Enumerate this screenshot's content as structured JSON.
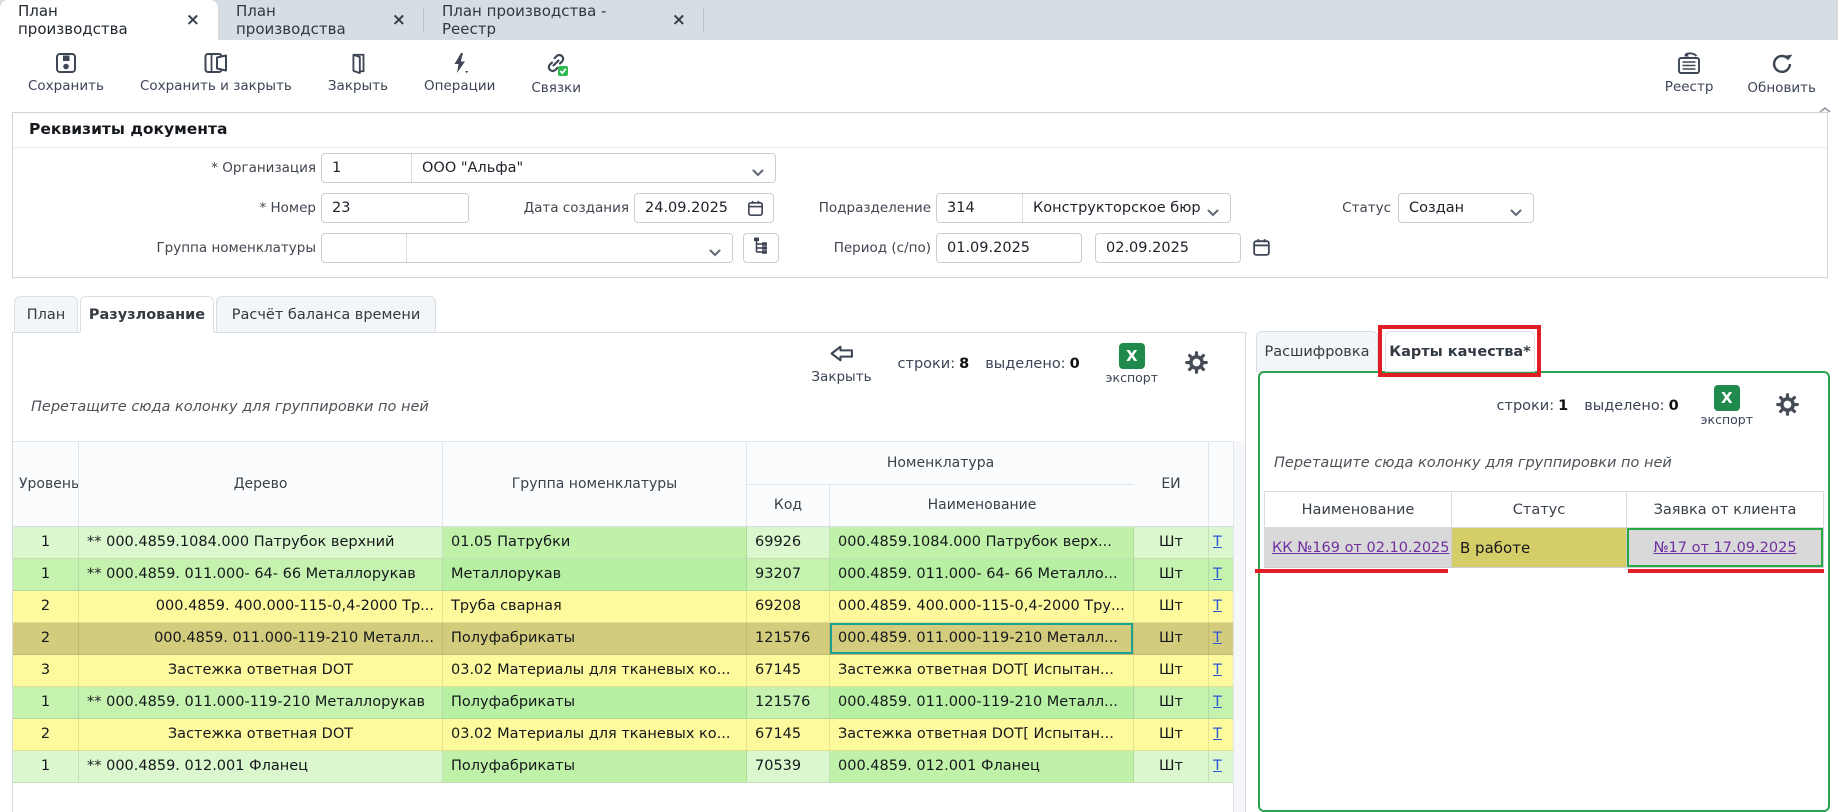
{
  "ui": {
    "close_glyph": "×",
    "excel_glyph": "X"
  },
  "window_tabs": [
    {
      "label": "План производства",
      "active": true
    },
    {
      "label": "План производства",
      "active": false
    },
    {
      "label": "План производства - Реестр",
      "active": false
    }
  ],
  "toolbar": {
    "save": "Сохранить",
    "save_close": "Сохранить и закрыть",
    "close": "Закрыть",
    "operations": "Операции",
    "links": "Связки",
    "registry": "Реестр",
    "refresh": "Обновить"
  },
  "requisites": {
    "title": "Реквизиты документа",
    "org_label": "* Организация",
    "org_code": "1",
    "org_name": "ООО \"Альфа\"",
    "number_label": "* Номер",
    "number_value": "23",
    "created_label": "Дата создания",
    "created_value": "24.09.2025",
    "department_label": "Подразделение",
    "department_code": "314",
    "department_name": "Конструкторское бюр",
    "status_label": "Статус",
    "status_value": "Создан",
    "group_label": "Группа номенклатуры",
    "group_code": "",
    "group_name": "",
    "period_label": "Период (с/по)",
    "period_from": "01.09.2025",
    "period_to": "02.09.2025"
  },
  "section_tabs": [
    {
      "label": "План",
      "active": false
    },
    {
      "label": "Разузлование",
      "active": true
    },
    {
      "label": "Расчёт баланса времени",
      "active": false
    }
  ],
  "left_grid": {
    "close_label": "Закрыть",
    "rows_label": "строки:",
    "rows_count": "8",
    "selected_label": "выделено:",
    "selected_count": "0",
    "export_label": "экспорт",
    "drag_hint": "Перетащите сюда колонку для группировки по ней",
    "columns": {
      "level": "Уровень",
      "tree": "Дерево",
      "group": "Группа номенклатуры",
      "nomenclature": "Номенклатура",
      "code": "Код",
      "name": "Наименование",
      "unit": "ЕИ"
    },
    "rows": [
      {
        "level": "1",
        "tree": "** 000.4859.1084.000 Патрубок верхний",
        "tree_align": "left",
        "group": "01.05 Патрубки",
        "code": "69926",
        "name": "000.4859.1084.000 Патрубок верх...",
        "unit": "Шт",
        "link": "Т",
        "color": "green-light"
      },
      {
        "level": "1",
        "tree": "** 000.4859. 011.000- 64- 66 Металлорукав",
        "tree_align": "left",
        "group": "Металлорукав",
        "code": "93207",
        "name": "000.4859. 011.000- 64- 66 Металло...",
        "unit": "Шт",
        "link": "Т",
        "color": "green"
      },
      {
        "level": "2",
        "tree": "000.4859. 400.000-115-0,4-2000 Тр...",
        "tree_align": "right",
        "group": "Труба сварная",
        "code": "69208",
        "name": "000.4859. 400.000-115-0,4-2000 Тру...",
        "unit": "Шт",
        "link": "Т",
        "color": "yellow"
      },
      {
        "level": "2",
        "tree": "000.4859. 011.000-119-210 Металл...",
        "tree_align": "right",
        "group": "Полуфабрикаты",
        "code": "121576",
        "name": "000.4859. 011.000-119-210 Металл...",
        "unit": "Шт",
        "link": "Т",
        "color": "selected",
        "name_selected": true
      },
      {
        "level": "3",
        "tree": "Застежка ответная DOT",
        "tree_align": "center",
        "group": "03.02 Материалы для тканевых ко...",
        "code": "67145",
        "name": "Застежка ответная DOT[ Испытан...",
        "unit": "Шт",
        "link": "Т",
        "color": "yellow"
      },
      {
        "level": "1",
        "tree": "** 000.4859. 011.000-119-210 Металлорукав",
        "tree_align": "left",
        "group": "Полуфабрикаты",
        "code": "121576",
        "name": "000.4859. 011.000-119-210 Металл...",
        "unit": "Шт",
        "link": "Т",
        "color": "green"
      },
      {
        "level": "2",
        "tree": "Застежка ответная DOT",
        "tree_align": "center",
        "group": "03.02 Материалы для тканевых ко...",
        "code": "67145",
        "name": "Застежка ответная DOT[ Испытан...",
        "unit": "Шт",
        "link": "Т",
        "color": "yellow"
      },
      {
        "level": "1",
        "tree": "** 000.4859. 012.001 Фланец",
        "tree_align": "left",
        "group": "Полуфабрикаты",
        "code": "70539",
        "name": "000.4859. 012.001 Фланец",
        "unit": "Шт",
        "link": "Т",
        "color": "green-light"
      }
    ]
  },
  "right_panel": {
    "tabs": [
      {
        "label": "Расшифровка",
        "active": false
      },
      {
        "label": "Карты качества*",
        "active": true
      }
    ],
    "rows_label": "строки:",
    "rows_count": "1",
    "selected_label": "выделено:",
    "selected_count": "0",
    "export_label": "экспорт",
    "drag_hint": "Перетащите сюда колонку для группировки по ней",
    "columns": [
      "Наименование",
      "Статус",
      "Заявка от клиента"
    ],
    "rows": [
      {
        "name": "КК №169 от 02.10.2025",
        "status": "В работе",
        "request": "№17 от 17.09.2025"
      }
    ]
  },
  "colors": {
    "annotation_red": "#e11d26",
    "link_purple": "#7030a0",
    "link_blue": "#2a5bd7",
    "excel_green": "#1f8a4c",
    "selection_teal": "#18a28f",
    "panel_green": "#2ba24f",
    "row_green": "#c5f3af",
    "row_green_light": "#daf7cd",
    "row_yellow": "#fdfa9d",
    "row_selected": "#d3cc7d",
    "status_cell": "#d4cd68",
    "gray_cell": "#d9d9d9"
  }
}
